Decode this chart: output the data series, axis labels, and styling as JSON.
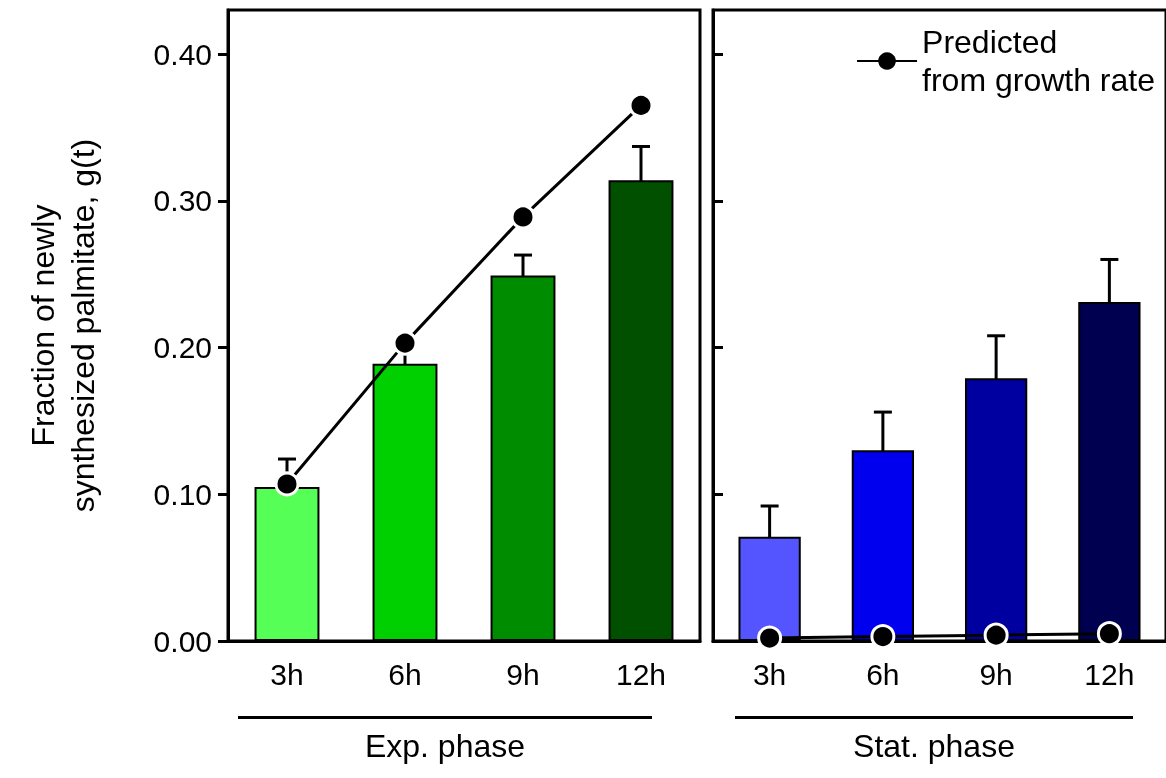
{
  "chart_data": [
    {
      "type": "bar",
      "ylabel": "Fraction of newly\nsynthesized palmitate, g(t)",
      "categories": [
        "3h",
        "6h",
        "9h",
        "12h"
      ],
      "ylim": [
        0,
        0.43
      ],
      "yticks": [
        {
          "value": 0,
          "label": "0.00"
        },
        {
          "value": 0.1,
          "label": "0.10"
        },
        {
          "value": 0.2,
          "label": "0.20"
        },
        {
          "value": 0.3,
          "label": "0.30"
        },
        {
          "value": 0.4,
          "label": "0.40"
        }
      ],
      "grid": false,
      "legend": false,
      "marker": "circle",
      "line_style": "solid",
      "annotations": [
        "Exp. phase"
      ],
      "series": [
        {
          "colors": [
            "#55ff55",
            "#00d000",
            "#008c00",
            "#005000"
          ],
          "values": [
            0.105,
            0.189,
            0.249,
            0.314
          ],
          "errors": [
            0.019,
            0.017,
            0.014,
            0.023
          ]
        },
        {
          "type": "line",
          "color": "#000000",
          "values": [
            0.107,
            0.203,
            0.289,
            0.365
          ]
        }
      ]
    },
    {
      "type": "bar",
      "categories": [
        "3h",
        "6h",
        "9h",
        "12h"
      ],
      "ylim": [
        0,
        0.43
      ],
      "yticks": [
        0,
        0.1,
        0.2,
        0.3,
        0.4
      ],
      "tick_labels": "x",
      "grid": false,
      "legend": "top right",
      "marker": "circle",
      "line_style": "solid",
      "annotations": [
        "Stat. phase"
      ],
      "series": [
        {
          "colors": [
            "#5555ff",
            "#0000ee",
            "#0000a0",
            "#000050"
          ],
          "values": [
            0.071,
            0.13,
            0.179,
            0.231
          ],
          "errors": [
            0.021,
            0.026,
            0.029,
            0.029
          ]
        },
        {
          "type": "line",
          "name": "Predicted\nfrom growth rate",
          "color": "#000000",
          "values": [
            0.002,
            0.003,
            0.004,
            0.005
          ]
        }
      ]
    }
  ]
}
